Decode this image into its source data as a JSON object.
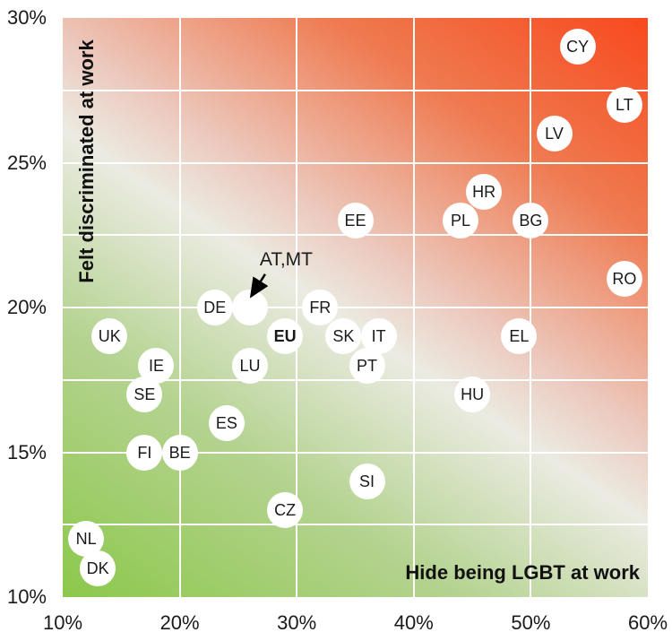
{
  "chart_data": {
    "type": "scatter",
    "title": "",
    "xlabel": "Hide being LGBT at work",
    "ylabel": "Felt discriminated at work",
    "xlim": [
      10,
      60
    ],
    "ylim": [
      10,
      30
    ],
    "x_ticks": [
      {
        "label": "10%",
        "value": 10
      },
      {
        "label": "20%",
        "value": 20
      },
      {
        "label": "30%",
        "value": 30
      },
      {
        "label": "40%",
        "value": 40
      },
      {
        "label": "50%",
        "value": 50
      },
      {
        "label": "60%",
        "value": 60
      }
    ],
    "y_ticks": [
      {
        "label": "30%",
        "value": 30
      },
      {
        "label": "25%",
        "value": 25
      },
      {
        "label": "20%",
        "value": 20
      },
      {
        "label": "15%",
        "value": 15
      },
      {
        "label": "10%",
        "value": 10
      }
    ],
    "grid": {
      "x_lines": [
        20,
        30,
        40,
        50
      ],
      "y_lines": [
        12.5,
        15,
        17.5,
        20,
        22.5,
        25,
        27.5
      ]
    },
    "points": [
      {
        "label": "CY",
        "x": 54,
        "y": 29
      },
      {
        "label": "LT",
        "x": 58,
        "y": 27
      },
      {
        "label": "LV",
        "x": 52,
        "y": 26
      },
      {
        "label": "HR",
        "x": 46,
        "y": 24
      },
      {
        "label": "PL",
        "x": 44,
        "y": 23
      },
      {
        "label": "BG",
        "x": 50,
        "y": 23
      },
      {
        "label": "EE",
        "x": 35,
        "y": 23
      },
      {
        "label": "RO",
        "x": 58,
        "y": 21
      },
      {
        "label": "DE",
        "x": 23,
        "y": 20
      },
      {
        "label": "",
        "x": 26,
        "y": 20,
        "note": "AT,MT"
      },
      {
        "label": "FR",
        "x": 32,
        "y": 20
      },
      {
        "label": "UK",
        "x": 14,
        "y": 19
      },
      {
        "label": "EU",
        "x": 29,
        "y": 19,
        "bold": true
      },
      {
        "label": "SK",
        "x": 34,
        "y": 19
      },
      {
        "label": "IT",
        "x": 37,
        "y": 19
      },
      {
        "label": "EL",
        "x": 49,
        "y": 19
      },
      {
        "label": "IE",
        "x": 18,
        "y": 18
      },
      {
        "label": "LU",
        "x": 26,
        "y": 18
      },
      {
        "label": "PT",
        "x": 36,
        "y": 18
      },
      {
        "label": "SE",
        "x": 17,
        "y": 17
      },
      {
        "label": "HU",
        "x": 45,
        "y": 17
      },
      {
        "label": "ES",
        "x": 24,
        "y": 16
      },
      {
        "label": "FI",
        "x": 17,
        "y": 15
      },
      {
        "label": "BE",
        "x": 20,
        "y": 15
      },
      {
        "label": "SI",
        "x": 36,
        "y": 14
      },
      {
        "label": "CZ",
        "x": 29,
        "y": 13
      },
      {
        "label": "NL",
        "x": 12,
        "y": 12
      },
      {
        "label": "DK",
        "x": 13,
        "y": 11
      }
    ],
    "annotation": {
      "text": "AT,MT",
      "text_x": 29.1,
      "text_y": 21.65,
      "arrow": {
        "x1": 27.3,
        "y1": 21.15,
        "x2": 26.2,
        "y2": 20.45
      }
    },
    "colors": {
      "gradient_angle": "34deg",
      "gradient_stops": [
        [
          "#8cc84b",
          "0%"
        ],
        [
          "#b5d391",
          "28%"
        ],
        [
          "#ebebe2",
          "48%"
        ],
        [
          "#eccabf",
          "57%"
        ],
        [
          "#ef7a50",
          "78%"
        ],
        [
          "#f8491d",
          "100%"
        ]
      ],
      "gridline": "#ffffff",
      "point_fill": "#ffffff",
      "text": "#1a1a1a",
      "arrow": "#000000"
    },
    "legend": null
  }
}
